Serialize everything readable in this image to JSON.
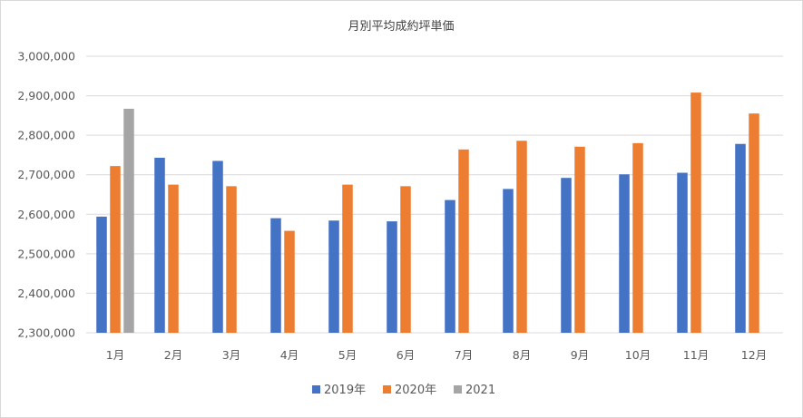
{
  "chart_data": {
    "type": "bar",
    "title": "月別平均成約坪単価",
    "xlabel": "",
    "ylabel": "",
    "ylim": [
      2300000,
      3000000
    ],
    "y_ticks": [
      "2,300,000",
      "2,400,000",
      "2,500,000",
      "2,600,000",
      "2,700,000",
      "2,800,000",
      "2,900,000",
      "3,000,000"
    ],
    "y_tick_values": [
      2300000,
      2400000,
      2500000,
      2600000,
      2700000,
      2800000,
      2900000,
      3000000
    ],
    "grid": true,
    "legend_position": "bottom",
    "categories": [
      "1月",
      "2月",
      "3月",
      "4月",
      "5月",
      "6月",
      "7月",
      "8月",
      "9月",
      "10月",
      "11月",
      "12月"
    ],
    "series": [
      {
        "name": "2019年",
        "color": "#4472c4",
        "values": [
          2594000,
          2743000,
          2735000,
          2590000,
          2584000,
          2582000,
          2636000,
          2664000,
          2692000,
          2701000,
          2705000,
          2778000
        ]
      },
      {
        "name": "2020年",
        "color": "#ed7d31",
        "values": [
          2722000,
          2675000,
          2671000,
          2558000,
          2675000,
          2671000,
          2764000,
          2786000,
          2771000,
          2780000,
          2908000,
          2855000
        ]
      },
      {
        "name": "2021",
        "color": "#a5a5a5",
        "values": [
          2867000,
          null,
          null,
          null,
          null,
          null,
          null,
          null,
          null,
          null,
          null,
          null
        ]
      }
    ]
  }
}
